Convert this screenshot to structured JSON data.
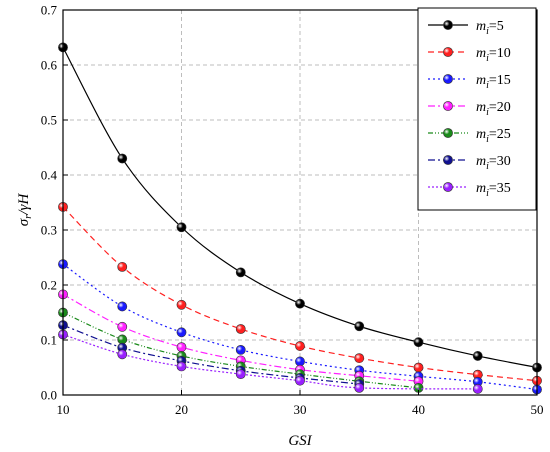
{
  "chart_data": {
    "type": "line",
    "xlabel": "GSI",
    "ylabel": "σ",
    "ylabel_sub": "r",
    "ylabel_tail": "/γH",
    "xlim": [
      10,
      50
    ],
    "ylim": [
      0,
      0.7
    ],
    "xticks": [
      "10",
      "20",
      "30",
      "40",
      "50"
    ],
    "yticks": [
      "0.0",
      "0.1",
      "0.2",
      "0.3",
      "0.4",
      "0.5",
      "0.6",
      "0.7"
    ],
    "grid": true,
    "legend_position": "top-right",
    "series": [
      {
        "label_prefix": "m",
        "label_sub": "i",
        "label_tail": "=5",
        "color": "#000000",
        "dash": "",
        "x": [
          10,
          15,
          20,
          25,
          30,
          35,
          40,
          45,
          50
        ],
        "y": [
          0.632,
          0.43,
          0.305,
          0.223,
          0.166,
          0.125,
          0.096,
          0.071,
          0.05
        ]
      },
      {
        "label_prefix": "m",
        "label_sub": "i",
        "label_tail": "=10",
        "color": "#ff2020",
        "dash": "6,4",
        "x": [
          10,
          15,
          20,
          25,
          30,
          35,
          40,
          45,
          50
        ],
        "y": [
          0.342,
          0.233,
          0.164,
          0.12,
          0.089,
          0.067,
          0.05,
          0.037,
          0.026
        ]
      },
      {
        "label_prefix": "m",
        "label_sub": "i",
        "label_tail": "=15",
        "color": "#1a1aff",
        "dash": "2,3",
        "x": [
          10,
          15,
          20,
          25,
          30,
          35,
          40,
          45,
          50
        ],
        "y": [
          0.238,
          0.161,
          0.114,
          0.082,
          0.061,
          0.045,
          0.034,
          0.024,
          0.01
        ]
      },
      {
        "label_prefix": "m",
        "label_sub": "i",
        "label_tail": "=20",
        "color": "#ff20ff",
        "dash": "7,3,2,3",
        "x": [
          10,
          15,
          20,
          25,
          30,
          35,
          40
        ],
        "y": [
          0.183,
          0.124,
          0.087,
          0.063,
          0.046,
          0.035,
          0.025
        ]
      },
      {
        "label_prefix": "m",
        "label_sub": "i",
        "label_tail": "=25",
        "color": "#1a8a1a",
        "dash": "5,2,1,2,1,2",
        "x": [
          10,
          15,
          20,
          25,
          30,
          35,
          40
        ],
        "y": [
          0.15,
          0.101,
          0.071,
          0.052,
          0.038,
          0.025,
          0.013
        ]
      },
      {
        "label_prefix": "m",
        "label_sub": "i",
        "label_tail": "=30",
        "color": "#101090",
        "dash": "7,3,2,3",
        "x": [
          10,
          15,
          20,
          25,
          30,
          35
        ],
        "y": [
          0.127,
          0.086,
          0.062,
          0.044,
          0.031,
          0.02
        ]
      },
      {
        "label_prefix": "m",
        "label_sub": "i",
        "label_tail": "=35",
        "color": "#9a20ff",
        "dash": "2,2",
        "x": [
          10,
          15,
          20,
          25,
          30,
          35,
          45
        ],
        "y": [
          0.11,
          0.074,
          0.052,
          0.038,
          0.026,
          0.013,
          0.011
        ]
      }
    ]
  }
}
